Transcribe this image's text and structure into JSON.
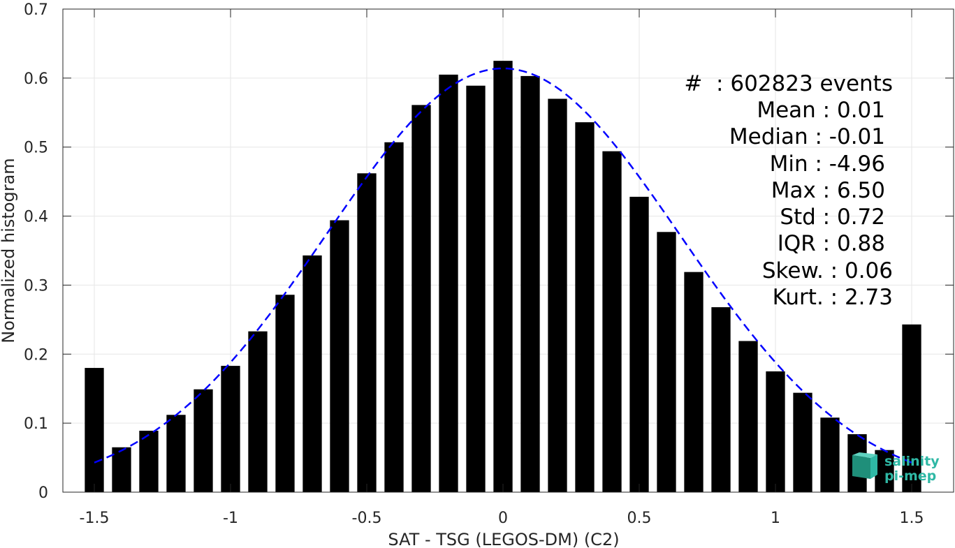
{
  "chart_data": {
    "type": "bar",
    "xlabel": "SAT - TSG (LEGOS-DM) (C2)",
    "ylabel": "Normalized histogram",
    "xlim": [
      -1.6,
      1.6
    ],
    "ylim": [
      0,
      0.7
    ],
    "xticks": [
      -1.5,
      -1,
      -0.5,
      0,
      0.5,
      1,
      1.5
    ],
    "xtick_labels": [
      "-1.5",
      "-1",
      "-0.5",
      "0",
      "0.5",
      "1",
      "1.5"
    ],
    "yticks": [
      0,
      0.1,
      0.2,
      0.3,
      0.4,
      0.5,
      0.6,
      0.7
    ],
    "ytick_labels": [
      "0",
      "0.1",
      "0.2",
      "0.3",
      "0.4",
      "0.5",
      "0.6",
      "0.7"
    ],
    "grid": true,
    "bar_color": "#000000",
    "bin_width": 0.1,
    "bin_centers": [
      -1.5,
      -1.4,
      -1.3,
      -1.2,
      -1.1,
      -1.0,
      -0.9,
      -0.8,
      -0.7,
      -0.6,
      -0.5,
      -0.4,
      -0.3,
      -0.2,
      -0.1,
      0.0,
      0.1,
      0.2,
      0.3,
      0.4,
      0.5,
      0.6,
      0.7,
      0.8,
      0.9,
      1.0,
      1.1,
      1.2,
      1.3,
      1.4,
      1.5
    ],
    "values": [
      0.18,
      0.065,
      0.089,
      0.112,
      0.149,
      0.183,
      0.233,
      0.286,
      0.343,
      0.394,
      0.462,
      0.507,
      0.561,
      0.605,
      0.589,
      0.625,
      0.603,
      0.57,
      0.536,
      0.494,
      0.428,
      0.377,
      0.319,
      0.268,
      0.219,
      0.175,
      0.144,
      0.108,
      0.084,
      0.061,
      0.243
    ],
    "fit_curve": {
      "type": "gaussian",
      "color": "#0000ff",
      "style": "dashed",
      "mean": 0.0,
      "std": 0.65,
      "peak": 0.614,
      "x_range": [
        -1.5,
        1.5
      ]
    },
    "stats": [
      {
        "label": "#  : 602823 events"
      },
      {
        "label": "Mean : 0.01"
      },
      {
        "label": "Median : -0.01"
      },
      {
        "label": "Min : -4.96"
      },
      {
        "label": "Max : 6.50"
      },
      {
        "label": "Std : 0.72"
      },
      {
        "label": "IQR : 0.88"
      },
      {
        "label": "Skew. : 0.06"
      },
      {
        "label": "Kurt. : 2.73"
      }
    ]
  },
  "logo": {
    "line1": "salinity",
    "line2": "pi-mep"
  }
}
